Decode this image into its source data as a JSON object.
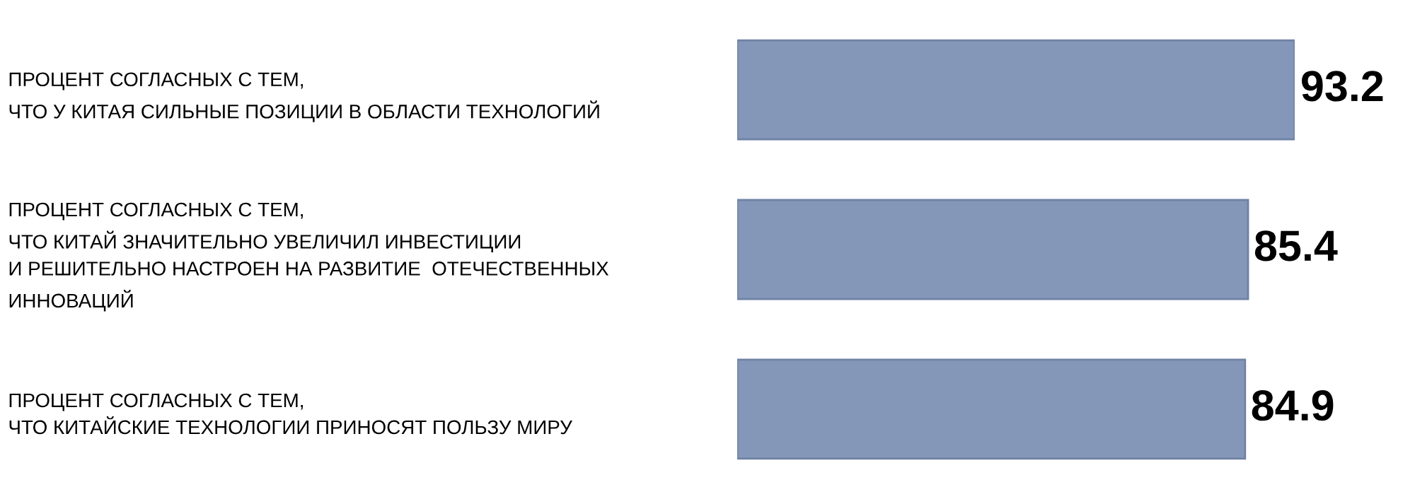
{
  "chart_data": {
    "type": "bar",
    "orientation": "horizontal",
    "categories": [
      "ПРОЦЕНТ СОГЛАСНЫХ С ТЕМ,\nЧТО У КИТАЯ СИЛЬНЫЕ ПОЗИЦИИ В ОБЛАСТИ ТЕХНОЛОГИЙ",
      "ПРОЦЕНТ СОГЛАСНЫХ С ТЕМ,\nЧТО КИТАЙ ЗНАЧИТЕЛЬНО УВЕЛИЧИЛ ИНВЕСТИЦИИ\nИ РЕШИТЕЛЬНО НАСТРОЕН НА РАЗВИТИЕ  ОТЕЧЕСТВЕННЫХ\nИННОВАЦИЙ",
      "ПРОЦЕНТ СОГЛАСНЫХ С ТЕМ,\nЧТО КИТАЙСКИЕ ТЕХНОЛОГИИ ПРИНОСЯТ ПОЛЬЗУ МИРУ"
    ],
    "values": [
      93.2,
      85.4,
      84.9
    ],
    "color": "#8497b8",
    "data_labels": true,
    "tick_labels": "y",
    "grid": false,
    "legend": false
  }
}
